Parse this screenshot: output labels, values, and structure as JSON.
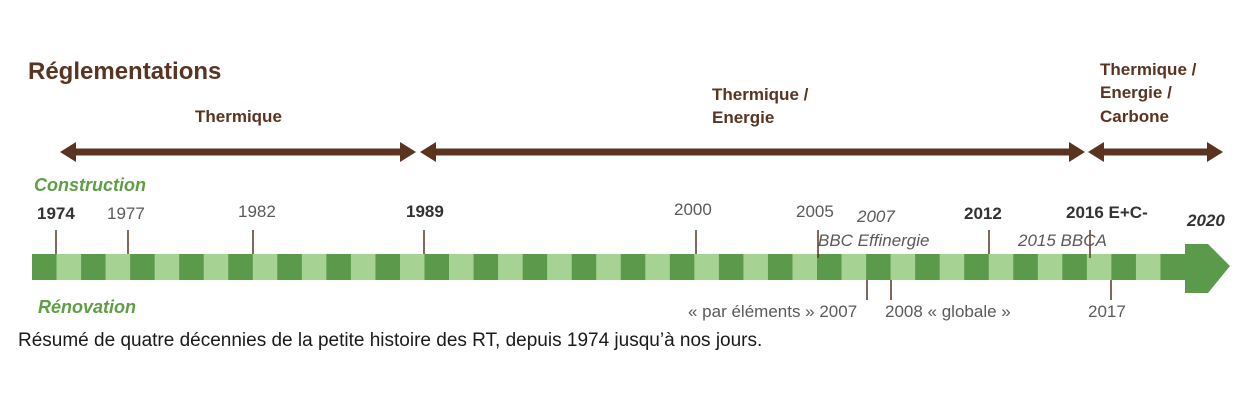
{
  "title": "Réglementations",
  "eras": [
    {
      "label": [
        "Thermique"
      ]
    },
    {
      "label": [
        "Thermique /",
        "Energie"
      ]
    },
    {
      "label": [
        "Thermique /",
        "Energie /",
        "Carbone"
      ]
    }
  ],
  "construction_label": "Construction",
  "renovation_label": "Rénovation",
  "construction_milestones": [
    {
      "label": "1974",
      "bold": true
    },
    {
      "label": "1977",
      "bold": false
    },
    {
      "label": "1982",
      "bold": false
    },
    {
      "label": "1989",
      "bold": true
    },
    {
      "label": "2000",
      "bold": false
    },
    {
      "label": "2005",
      "bold": false
    },
    {
      "label": "2012",
      "bold": true
    },
    {
      "label": "2016 E+C-",
      "bold": true
    },
    {
      "label": "2020",
      "bold": true,
      "italic": true
    }
  ],
  "labels_2007": {
    "year": "2007",
    "name": "BBC Effinergie"
  },
  "label_2015": "2015 BBCA",
  "renovation_milestones": [
    {
      "label": "« par éléments » 2007"
    },
    {
      "label": "2008 « globale »"
    },
    {
      "label": "2017"
    }
  ],
  "caption": "Résumé de quatre décennies de la petite histoire des RT, depuis 1974 jusqu’à nos jours.",
  "colors": {
    "brown": "#5a3420",
    "green_dark": "#5a9a4a",
    "green_light": "#a6d394",
    "green_label": "#5f9e45",
    "text_grey": "#5a5a5a",
    "text_dark": "#333333"
  }
}
